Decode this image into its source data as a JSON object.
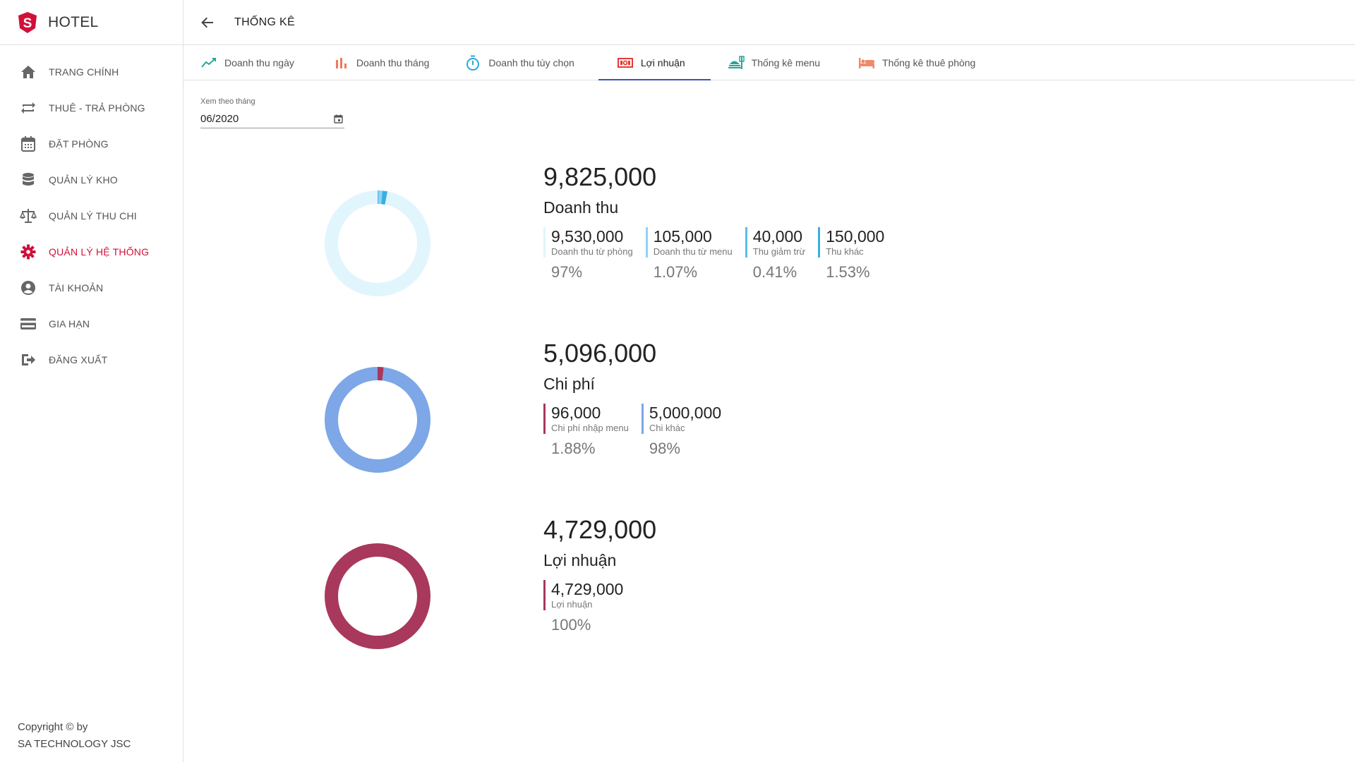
{
  "app": {
    "brand": "HOTEL",
    "logo_letter": "S"
  },
  "sidebar": {
    "items": [
      {
        "label": "TRANG CHÍNH",
        "icon": "home-icon"
      },
      {
        "label": "THUÊ - TRẢ PHÒNG",
        "icon": "swap-icon"
      },
      {
        "label": "ĐẶT PHÒNG",
        "icon": "calendar-icon"
      },
      {
        "label": "QUẢN LÝ KHO",
        "icon": "database-icon"
      },
      {
        "label": "QUẢN LÝ THU CHI",
        "icon": "scale-icon"
      },
      {
        "label": "QUẢN LÝ HỆ THỐNG",
        "icon": "gear-icon",
        "active": true
      },
      {
        "label": "TÀI KHOẢN",
        "icon": "account-icon"
      },
      {
        "label": "GIA HẠN",
        "icon": "credit-card-icon"
      },
      {
        "label": "ĐĂNG XUẤT",
        "icon": "logout-icon"
      }
    ],
    "copyright_line1": "Copyright © by",
    "copyright_line2": "SA TECHNOLOGY JSC"
  },
  "header": {
    "title": "THỐNG KÊ"
  },
  "tabs": [
    {
      "label": "Doanh thu ngày",
      "icon": "line-chart-icon"
    },
    {
      "label": "Doanh thu tháng",
      "icon": "bar-chart-icon"
    },
    {
      "label": "Doanh thu tùy chọn",
      "icon": "timer-icon"
    },
    {
      "label": "Lợi nhuận",
      "icon": "money-icon",
      "active": true
    },
    {
      "label": "Thống kê menu",
      "icon": "food-icon"
    },
    {
      "label": "Thống kê thuê phòng",
      "icon": "bed-icon"
    }
  ],
  "filter": {
    "label": "Xem theo tháng",
    "value": "06/2020"
  },
  "colors": {
    "accent_red": "#d0103a",
    "tab_indicator": "#3f51b5",
    "revenue_light": "#e1f5fd",
    "revenue_blue": "#4fc3f7",
    "cost_blue": "#7da7e6",
    "crimson": "#a8385c"
  },
  "sections": [
    {
      "total": "9,825,000",
      "title": "Doanh thu",
      "items": [
        {
          "value": "9,530,000",
          "label": "Doanh thu từ phòng",
          "percent": "97%",
          "fraction": 0.97,
          "color": "#e1f5fd"
        },
        {
          "value": "105,000",
          "label": "Doanh thu từ menu",
          "percent": "1.07%",
          "fraction": 0.0107,
          "color": "#8fd3f5"
        },
        {
          "value": "40,000",
          "label": "Thu giảm trừ",
          "percent": "0.41%",
          "fraction": 0.0041,
          "color": "#5bbde9"
        },
        {
          "value": "150,000",
          "label": "Thu khác",
          "percent": "1.53%",
          "fraction": 0.0153,
          "color": "#3aaee3"
        }
      ]
    },
    {
      "total": "5,096,000",
      "title": "Chi phí",
      "items": [
        {
          "value": "96,000",
          "label": "Chi phí nhập menu",
          "percent": "1.88%",
          "fraction": 0.0188,
          "color": "#a8385c"
        },
        {
          "value": "5,000,000",
          "label": "Chi khác",
          "percent": "98%",
          "fraction": 0.9812,
          "color": "#7da7e6"
        }
      ]
    },
    {
      "total": "4,729,000",
      "title": "Lợi nhuận",
      "items": [
        {
          "value": "4,729,000",
          "label": "Lợi nhuận",
          "percent": "100%",
          "fraction": 1.0,
          "color": "#a8385c"
        }
      ]
    }
  ]
}
